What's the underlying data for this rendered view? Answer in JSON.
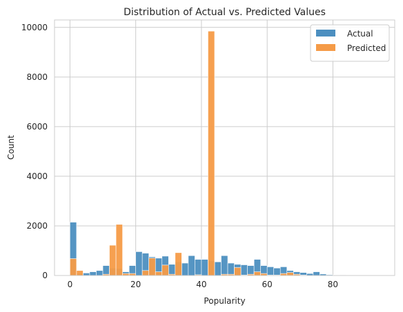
{
  "chart_data": {
    "type": "bar",
    "title": "Distribution of Actual vs. Predicted Values",
    "xlabel": "Popularity",
    "ylabel": "Count",
    "xlim": [
      -4.7,
      98.8
    ],
    "ylim": [
      0,
      10300
    ],
    "x_ticks": [
      0,
      20,
      40,
      60,
      80
    ],
    "y_ticks": [
      0,
      2000,
      4000,
      6000,
      8000,
      10000
    ],
    "grid": true,
    "legend_position": "top-right",
    "bin_width": 2,
    "bins": [
      0,
      2,
      4,
      6,
      8,
      10,
      12,
      14,
      16,
      18,
      20,
      22,
      24,
      26,
      28,
      30,
      32,
      34,
      36,
      38,
      40,
      42,
      44,
      46,
      48,
      50,
      52,
      54,
      56,
      58,
      60,
      62,
      64,
      66,
      68,
      70,
      72,
      74,
      76,
      78,
      80,
      82,
      84,
      86,
      88,
      90,
      92
    ],
    "series": [
      {
        "name": "Actual",
        "color": "#4c8fc0",
        "values": [
          2150,
          80,
          100,
          150,
          200,
          400,
          300,
          280,
          150,
          400,
          960,
          900,
          750,
          700,
          780,
          450,
          550,
          500,
          800,
          650,
          650,
          600,
          550,
          800,
          500,
          450,
          430,
          400,
          650,
          400,
          350,
          300,
          350,
          200,
          150,
          120,
          80,
          150,
          60,
          30,
          20,
          15,
          10,
          8,
          5,
          3,
          2
        ]
      },
      {
        "name": "Predicted",
        "color": "#f59b47",
        "values": [
          680,
          200,
          0,
          0,
          0,
          50,
          1220,
          2060,
          80,
          80,
          0,
          200,
          700,
          150,
          420,
          50,
          920,
          0,
          0,
          30,
          0,
          9850,
          0,
          50,
          50,
          320,
          20,
          50,
          150,
          80,
          20,
          20,
          80,
          120,
          50,
          20,
          0,
          0,
          0,
          0,
          0,
          0,
          0,
          0,
          0,
          0,
          0
        ]
      }
    ]
  }
}
